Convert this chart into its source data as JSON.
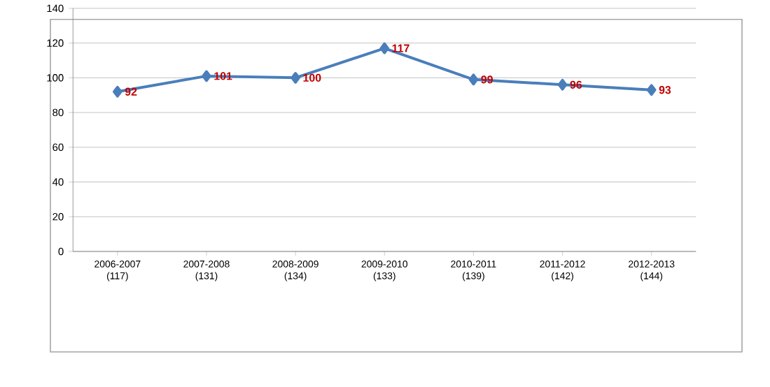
{
  "chart_data": {
    "type": "line",
    "categories": [
      "2006-2007 (117)",
      "2007-2008 (131)",
      "2008-2009 (134)",
      "2009-2010 (133)",
      "2010-2011 (139)",
      "2011-2012 (142)",
      "2012-2013 (144)"
    ],
    "values": [
      92,
      101,
      100,
      117,
      99,
      96,
      93
    ],
    "color": "#4a7ebb",
    "marker": "diamond",
    "line_style": "solid",
    "grid": "y",
    "data_labels": true,
    "ylim": [
      0,
      140
    ],
    "yticks": [
      0,
      20,
      40,
      60,
      80,
      100,
      120,
      140
    ]
  }
}
